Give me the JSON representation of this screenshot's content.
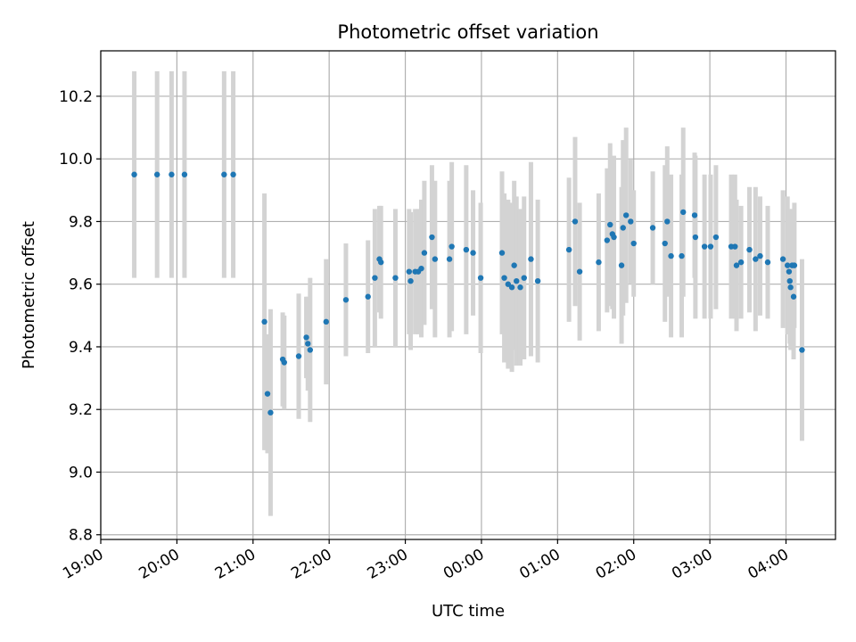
{
  "chart_data": {
    "type": "scatter",
    "title": "Photometric offset variation",
    "xlabel": "UTC time",
    "ylabel": "Photometric offset",
    "x_unit": "hours after 19:00 UTC",
    "xlim": [
      0,
      9.65
    ],
    "ylim": [
      8.785,
      10.345
    ],
    "grid": true,
    "x_ticks": [
      {
        "value": 0,
        "label": "19:00"
      },
      {
        "value": 1,
        "label": "20:00"
      },
      {
        "value": 2,
        "label": "21:00"
      },
      {
        "value": 3,
        "label": "22:00"
      },
      {
        "value": 4,
        "label": "23:00"
      },
      {
        "value": 5,
        "label": "00:00"
      },
      {
        "value": 6,
        "label": "01:00"
      },
      {
        "value": 7,
        "label": "02:00"
      },
      {
        "value": 8,
        "label": "03:00"
      },
      {
        "value": 9,
        "label": "04:00"
      }
    ],
    "y_ticks": [
      {
        "value": 8.8,
        "label": "8.8"
      },
      {
        "value": 9.0,
        "label": "9.0"
      },
      {
        "value": 9.2,
        "label": "9.2"
      },
      {
        "value": 9.4,
        "label": "9.4"
      },
      {
        "value": 9.6,
        "label": "9.6"
      },
      {
        "value": 9.8,
        "label": "9.8"
      },
      {
        "value": 10.0,
        "label": "10.0"
      },
      {
        "value": 10.2,
        "label": "10.2"
      }
    ],
    "series": [
      {
        "marker_color": "#1f77b4",
        "errorbar_color": "#d3d3d3",
        "points": [
          [
            0.44,
            9.95,
            0.33
          ],
          [
            0.74,
            9.95,
            0.33
          ],
          [
            0.93,
            9.95,
            0.33
          ],
          [
            1.1,
            9.95,
            0.33
          ],
          [
            1.62,
            9.95,
            0.33
          ],
          [
            1.74,
            9.95,
            0.33
          ],
          [
            2.15,
            9.48,
            0.41
          ],
          [
            2.19,
            9.25,
            0.19
          ],
          [
            2.23,
            9.19,
            0.33
          ],
          [
            2.39,
            9.36,
            0.15
          ],
          [
            2.41,
            9.35,
            0.15
          ],
          [
            2.6,
            9.37,
            0.2
          ],
          [
            2.7,
            9.43,
            0.13
          ],
          [
            2.72,
            9.41,
            0.15
          ],
          [
            2.75,
            9.39,
            0.23
          ],
          [
            2.96,
            9.48,
            0.2
          ],
          [
            3.22,
            9.55,
            0.18
          ],
          [
            3.51,
            9.56,
            0.18
          ],
          [
            3.6,
            9.62,
            0.22
          ],
          [
            3.66,
            9.68,
            0.17
          ],
          [
            3.68,
            9.67,
            0.18
          ],
          [
            3.87,
            9.62,
            0.22
          ],
          [
            4.05,
            9.64,
            0.2
          ],
          [
            4.07,
            9.61,
            0.22
          ],
          [
            4.13,
            9.64,
            0.2
          ],
          [
            4.17,
            9.64,
            0.2
          ],
          [
            4.21,
            9.65,
            0.22
          ],
          [
            4.25,
            9.7,
            0.23
          ],
          [
            4.35,
            9.75,
            0.23
          ],
          [
            4.39,
            9.68,
            0.25
          ],
          [
            4.58,
            9.68,
            0.25
          ],
          [
            4.61,
            9.72,
            0.27
          ],
          [
            4.8,
            9.71,
            0.27
          ],
          [
            4.89,
            9.7,
            0.2
          ],
          [
            4.99,
            9.62,
            0.24
          ],
          [
            5.27,
            9.7,
            0.26
          ],
          [
            5.3,
            9.62,
            0.27
          ],
          [
            5.35,
            9.6,
            0.27
          ],
          [
            5.4,
            9.59,
            0.27
          ],
          [
            5.43,
            9.66,
            0.27
          ],
          [
            5.46,
            9.61,
            0.27
          ],
          [
            5.51,
            9.59,
            0.25
          ],
          [
            5.56,
            9.62,
            0.26
          ],
          [
            5.65,
            9.68,
            0.31
          ],
          [
            5.74,
            9.61,
            0.26
          ],
          [
            6.15,
            9.71,
            0.23
          ],
          [
            6.23,
            9.8,
            0.27
          ],
          [
            6.29,
            9.64,
            0.22
          ],
          [
            6.54,
            9.67,
            0.22
          ],
          [
            6.65,
            9.74,
            0.23
          ],
          [
            6.69,
            9.79,
            0.26
          ],
          [
            6.72,
            9.76,
            0.24
          ],
          [
            6.74,
            9.75,
            0.26
          ],
          [
            6.84,
            9.66,
            0.25
          ],
          [
            6.86,
            9.78,
            0.28
          ],
          [
            6.9,
            9.82,
            0.28
          ],
          [
            6.96,
            9.8,
            0.2
          ],
          [
            7.0,
            9.73,
            0.17
          ],
          [
            7.25,
            9.78,
            0.18
          ],
          [
            7.41,
            9.73,
            0.25
          ],
          [
            7.44,
            9.8,
            0.24
          ],
          [
            7.49,
            9.69,
            0.26
          ],
          [
            7.63,
            9.69,
            0.26
          ],
          [
            7.65,
            9.83,
            0.27
          ],
          [
            7.8,
            9.82,
            0.2
          ],
          [
            7.81,
            9.75,
            0.26
          ],
          [
            7.93,
            9.72,
            0.23
          ],
          [
            8.01,
            9.72,
            0.23
          ],
          [
            8.08,
            9.75,
            0.23
          ],
          [
            8.28,
            9.72,
            0.23
          ],
          [
            8.33,
            9.72,
            0.23
          ],
          [
            8.35,
            9.66,
            0.21
          ],
          [
            8.41,
            9.67,
            0.18
          ],
          [
            8.52,
            9.71,
            0.2
          ],
          [
            8.6,
            9.68,
            0.23
          ],
          [
            8.66,
            9.69,
            0.19
          ],
          [
            8.76,
            9.67,
            0.18
          ],
          [
            8.96,
            9.68,
            0.22
          ],
          [
            9.02,
            9.66,
            0.22
          ],
          [
            9.04,
            9.64,
            0.2
          ],
          [
            9.05,
            9.61,
            0.2
          ],
          [
            9.06,
            9.59,
            0.2
          ],
          [
            9.08,
            9.66,
            0.18
          ],
          [
            9.11,
            9.66,
            0.2
          ],
          [
            9.1,
            9.56,
            0.2
          ],
          [
            9.21,
            9.39,
            0.29
          ]
        ]
      }
    ]
  }
}
